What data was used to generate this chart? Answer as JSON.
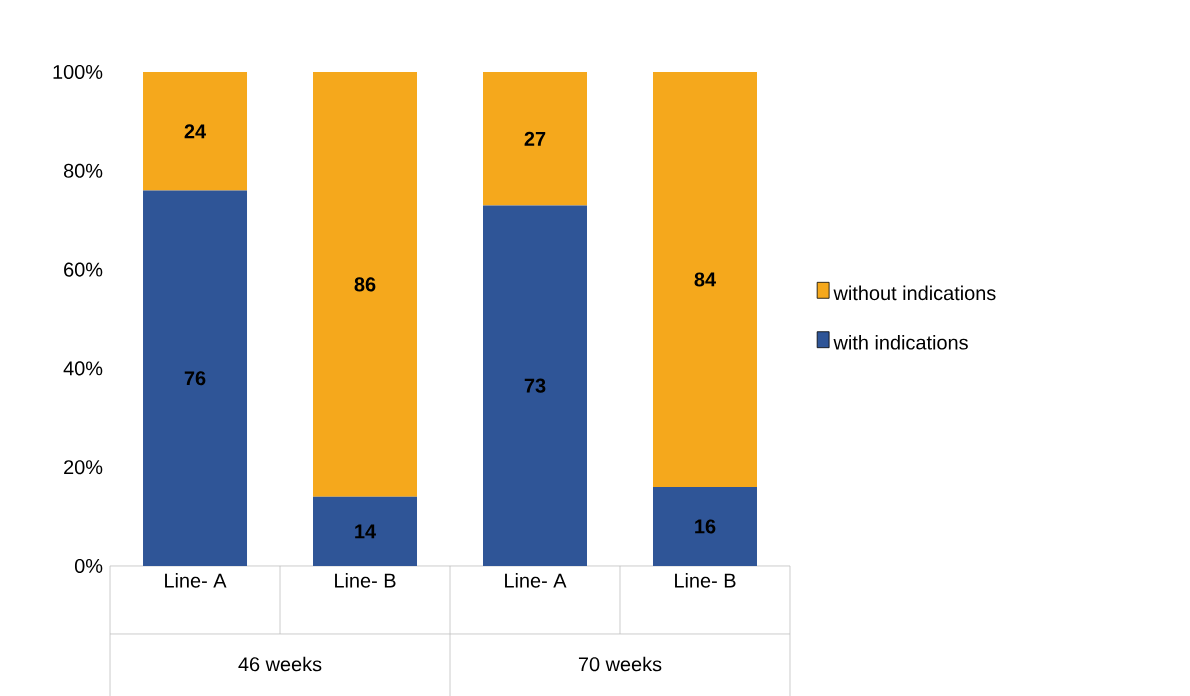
{
  "chart_data": {
    "type": "bar",
    "stacked": true,
    "categories": [
      "Line- A",
      "Line- B",
      "Line- A",
      "Line- B"
    ],
    "series": [
      {
        "name": "with indications",
        "color": "#2f5597",
        "values": [
          76,
          14,
          73,
          16
        ]
      },
      {
        "name": "without indications",
        "color": "#f5a81c",
        "values": [
          24,
          86,
          27,
          84
        ]
      }
    ],
    "ylim": [
      0,
      100
    ],
    "yticks": [
      {
        "value": 0,
        "label": "0%"
      },
      {
        "value": 20,
        "label": "20%"
      },
      {
        "value": 40,
        "label": "40%"
      },
      {
        "value": 60,
        "label": "60%"
      },
      {
        "value": 80,
        "label": "80%"
      },
      {
        "value": 100,
        "label": "100%"
      }
    ],
    "data_labels": true,
    "legend": "right",
    "annotations": [
      "46 weeks",
      "70 weeks"
    ]
  }
}
